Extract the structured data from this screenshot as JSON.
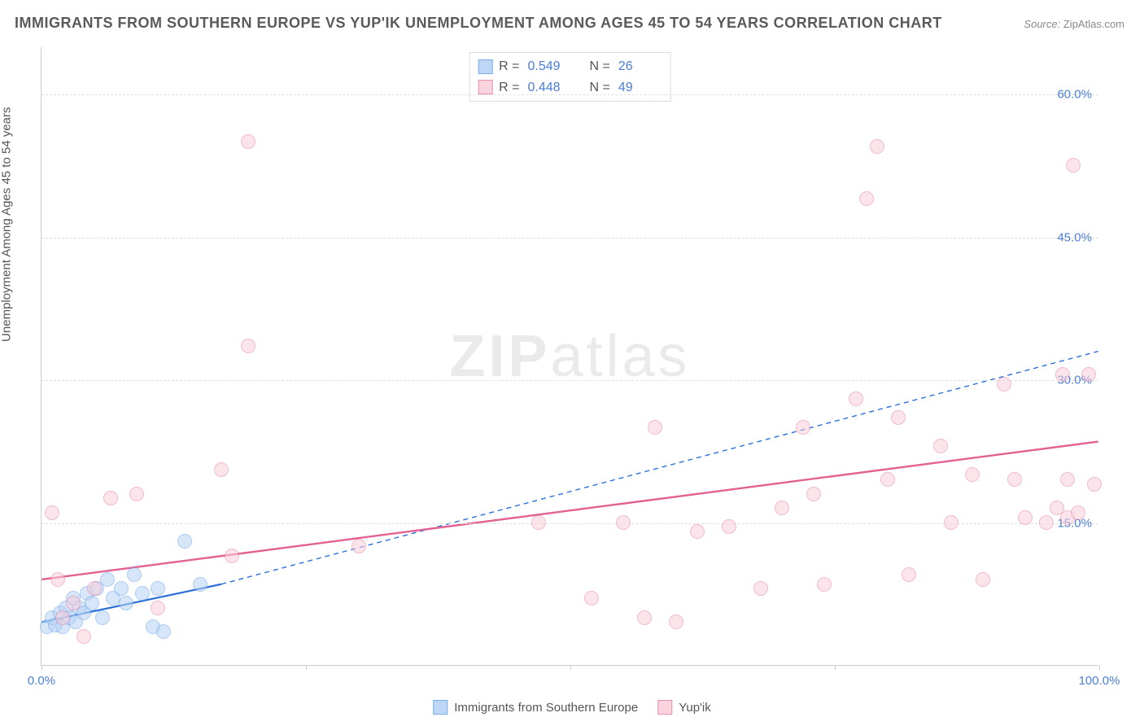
{
  "title": "IMMIGRANTS FROM SOUTHERN EUROPE VS YUP'IK UNEMPLOYMENT AMONG AGES 45 TO 54 YEARS CORRELATION CHART",
  "source_label": "Source:",
  "source_value": "ZipAtlas.com",
  "y_axis_title": "Unemployment Among Ages 45 to 54 years",
  "watermark": "ZIPatlas",
  "chart": {
    "type": "scatter",
    "xlim": [
      0,
      100
    ],
    "ylim": [
      0,
      65
    ],
    "x_ticks": [
      0,
      25,
      50,
      75,
      100
    ],
    "x_tick_labels": [
      "0.0%",
      "",
      "",
      "",
      "100.0%"
    ],
    "y_gridlines": [
      15,
      30,
      45,
      60
    ],
    "y_tick_labels": [
      "15.0%",
      "30.0%",
      "45.0%",
      "60.0%"
    ],
    "background_color": "#ffffff",
    "grid_color": "#e0e0e0",
    "marker_radius": 9,
    "series": [
      {
        "key": "s1",
        "name": "Immigrants from Southern Europe",
        "fill_color": "#b7d3f4",
        "stroke_color": "#6ea3e8",
        "fill_opacity": 0.55,
        "trend": {
          "x1": 0,
          "y1": 4.5,
          "x2": 17,
          "y2": 8.5,
          "color": "#2b6fd9",
          "width": 2.2,
          "dash": "none"
        },
        "trend_ext": {
          "x1": 17,
          "y1": 8.5,
          "x2": 100,
          "y2": 33.0,
          "color": "#2b6fd9",
          "width": 1.4,
          "dash": "6 5"
        },
        "R": "0.549",
        "N": "26",
        "points": [
          {
            "x": 0.5,
            "y": 4.0
          },
          {
            "x": 1.0,
            "y": 5.0
          },
          {
            "x": 1.3,
            "y": 4.2
          },
          {
            "x": 1.8,
            "y": 5.5
          },
          {
            "x": 2.0,
            "y": 4.0
          },
          {
            "x": 2.3,
            "y": 6.0
          },
          {
            "x": 2.6,
            "y": 5.0
          },
          {
            "x": 3.0,
            "y": 7.0
          },
          {
            "x": 3.2,
            "y": 4.5
          },
          {
            "x": 3.6,
            "y": 6.0
          },
          {
            "x": 4.0,
            "y": 5.5
          },
          {
            "x": 4.3,
            "y": 7.5
          },
          {
            "x": 4.8,
            "y": 6.5
          },
          {
            "x": 5.2,
            "y": 8.0
          },
          {
            "x": 5.8,
            "y": 5.0
          },
          {
            "x": 6.2,
            "y": 9.0
          },
          {
            "x": 6.8,
            "y": 7.0
          },
          {
            "x": 7.5,
            "y": 8.0
          },
          {
            "x": 8.0,
            "y": 6.5
          },
          {
            "x": 8.8,
            "y": 9.5
          },
          {
            "x": 9.5,
            "y": 7.5
          },
          {
            "x": 10.5,
            "y": 4.0
          },
          {
            "x": 11.0,
            "y": 8.0
          },
          {
            "x": 11.5,
            "y": 3.5
          },
          {
            "x": 13.5,
            "y": 13.0
          },
          {
            "x": 15.0,
            "y": 8.5
          }
        ]
      },
      {
        "key": "s2",
        "name": "Yup'ik",
        "fill_color": "#f9d0dc",
        "stroke_color": "#e685a5",
        "fill_opacity": 0.55,
        "trend": {
          "x1": 0,
          "y1": 9.0,
          "x2": 100,
          "y2": 23.5,
          "color": "#e36092",
          "width": 2.4,
          "dash": "none"
        },
        "R": "0.448",
        "N": "49",
        "points": [
          {
            "x": 1.0,
            "y": 16.0
          },
          {
            "x": 1.5,
            "y": 9.0
          },
          {
            "x": 2.0,
            "y": 5.0
          },
          {
            "x": 3.0,
            "y": 6.5
          },
          {
            "x": 4.0,
            "y": 3.0
          },
          {
            "x": 5.0,
            "y": 8.0
          },
          {
            "x": 6.5,
            "y": 17.5
          },
          {
            "x": 9.0,
            "y": 18.0
          },
          {
            "x": 11.0,
            "y": 6.0
          },
          {
            "x": 17.0,
            "y": 20.5
          },
          {
            "x": 18.0,
            "y": 11.5
          },
          {
            "x": 19.5,
            "y": 33.5
          },
          {
            "x": 19.5,
            "y": 55.0
          },
          {
            "x": 30.0,
            "y": 12.5
          },
          {
            "x": 47.0,
            "y": 15.0
          },
          {
            "x": 52.0,
            "y": 7.0
          },
          {
            "x": 55.0,
            "y": 15.0
          },
          {
            "x": 57.0,
            "y": 5.0
          },
          {
            "x": 58.0,
            "y": 25.0
          },
          {
            "x": 60.0,
            "y": 4.5
          },
          {
            "x": 62.0,
            "y": 14.0
          },
          {
            "x": 65.0,
            "y": 14.5
          },
          {
            "x": 68.0,
            "y": 8.0
          },
          {
            "x": 70.0,
            "y": 16.5
          },
          {
            "x": 72.0,
            "y": 25.0
          },
          {
            "x": 73.0,
            "y": 18.0
          },
          {
            "x": 74.0,
            "y": 8.5
          },
          {
            "x": 77.0,
            "y": 28.0
          },
          {
            "x": 78.0,
            "y": 49.0
          },
          {
            "x": 79.0,
            "y": 54.5
          },
          {
            "x": 80.0,
            "y": 19.5
          },
          {
            "x": 81.0,
            "y": 26.0
          },
          {
            "x": 82.0,
            "y": 9.5
          },
          {
            "x": 85.0,
            "y": 23.0
          },
          {
            "x": 86.0,
            "y": 15.0
          },
          {
            "x": 88.0,
            "y": 20.0
          },
          {
            "x": 89.0,
            "y": 9.0
          },
          {
            "x": 91.0,
            "y": 29.5
          },
          {
            "x": 92.0,
            "y": 19.5
          },
          {
            "x": 93.0,
            "y": 15.5
          },
          {
            "x": 95.0,
            "y": 15.0
          },
          {
            "x": 96.0,
            "y": 16.5
          },
          {
            "x": 96.5,
            "y": 30.5
          },
          {
            "x": 97.0,
            "y": 15.5
          },
          {
            "x": 97.0,
            "y": 19.5
          },
          {
            "x": 97.5,
            "y": 52.5
          },
          {
            "x": 98.0,
            "y": 16.0
          },
          {
            "x": 99.0,
            "y": 30.5
          },
          {
            "x": 99.5,
            "y": 19.0
          }
        ]
      }
    ]
  },
  "legend_labels": {
    "r_label": "R =",
    "n_label": "N ="
  }
}
